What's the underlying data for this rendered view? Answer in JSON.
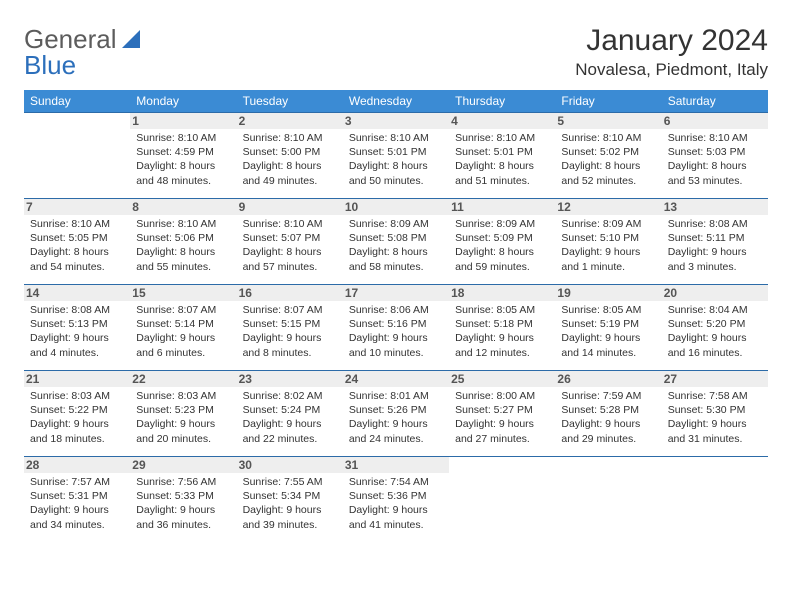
{
  "logo": {
    "part1": "General",
    "part2": "Blue"
  },
  "title": "January 2024",
  "location": "Novalesa, Piedmont, Italy",
  "colors": {
    "header_bg": "#3b8bd4",
    "header_fg": "#ffffff",
    "row_border": "#2c6ba8",
    "daynum_bg": "#eeeeee",
    "logo_gray": "#5c5c5c",
    "logo_blue": "#2c6fbb"
  },
  "weekdays": [
    "Sunday",
    "Monday",
    "Tuesday",
    "Wednesday",
    "Thursday",
    "Friday",
    "Saturday"
  ],
  "weeks": [
    [
      {
        "day": "",
        "sunrise": "",
        "sunset": "",
        "daylight1": "",
        "daylight2": ""
      },
      {
        "day": "1",
        "sunrise": "Sunrise: 8:10 AM",
        "sunset": "Sunset: 4:59 PM",
        "daylight1": "Daylight: 8 hours",
        "daylight2": "and 48 minutes."
      },
      {
        "day": "2",
        "sunrise": "Sunrise: 8:10 AM",
        "sunset": "Sunset: 5:00 PM",
        "daylight1": "Daylight: 8 hours",
        "daylight2": "and 49 minutes."
      },
      {
        "day": "3",
        "sunrise": "Sunrise: 8:10 AM",
        "sunset": "Sunset: 5:01 PM",
        "daylight1": "Daylight: 8 hours",
        "daylight2": "and 50 minutes."
      },
      {
        "day": "4",
        "sunrise": "Sunrise: 8:10 AM",
        "sunset": "Sunset: 5:01 PM",
        "daylight1": "Daylight: 8 hours",
        "daylight2": "and 51 minutes."
      },
      {
        "day": "5",
        "sunrise": "Sunrise: 8:10 AM",
        "sunset": "Sunset: 5:02 PM",
        "daylight1": "Daylight: 8 hours",
        "daylight2": "and 52 minutes."
      },
      {
        "day": "6",
        "sunrise": "Sunrise: 8:10 AM",
        "sunset": "Sunset: 5:03 PM",
        "daylight1": "Daylight: 8 hours",
        "daylight2": "and 53 minutes."
      }
    ],
    [
      {
        "day": "7",
        "sunrise": "Sunrise: 8:10 AM",
        "sunset": "Sunset: 5:05 PM",
        "daylight1": "Daylight: 8 hours",
        "daylight2": "and 54 minutes."
      },
      {
        "day": "8",
        "sunrise": "Sunrise: 8:10 AM",
        "sunset": "Sunset: 5:06 PM",
        "daylight1": "Daylight: 8 hours",
        "daylight2": "and 55 minutes."
      },
      {
        "day": "9",
        "sunrise": "Sunrise: 8:10 AM",
        "sunset": "Sunset: 5:07 PM",
        "daylight1": "Daylight: 8 hours",
        "daylight2": "and 57 minutes."
      },
      {
        "day": "10",
        "sunrise": "Sunrise: 8:09 AM",
        "sunset": "Sunset: 5:08 PM",
        "daylight1": "Daylight: 8 hours",
        "daylight2": "and 58 minutes."
      },
      {
        "day": "11",
        "sunrise": "Sunrise: 8:09 AM",
        "sunset": "Sunset: 5:09 PM",
        "daylight1": "Daylight: 8 hours",
        "daylight2": "and 59 minutes."
      },
      {
        "day": "12",
        "sunrise": "Sunrise: 8:09 AM",
        "sunset": "Sunset: 5:10 PM",
        "daylight1": "Daylight: 9 hours",
        "daylight2": "and 1 minute."
      },
      {
        "day": "13",
        "sunrise": "Sunrise: 8:08 AM",
        "sunset": "Sunset: 5:11 PM",
        "daylight1": "Daylight: 9 hours",
        "daylight2": "and 3 minutes."
      }
    ],
    [
      {
        "day": "14",
        "sunrise": "Sunrise: 8:08 AM",
        "sunset": "Sunset: 5:13 PM",
        "daylight1": "Daylight: 9 hours",
        "daylight2": "and 4 minutes."
      },
      {
        "day": "15",
        "sunrise": "Sunrise: 8:07 AM",
        "sunset": "Sunset: 5:14 PM",
        "daylight1": "Daylight: 9 hours",
        "daylight2": "and 6 minutes."
      },
      {
        "day": "16",
        "sunrise": "Sunrise: 8:07 AM",
        "sunset": "Sunset: 5:15 PM",
        "daylight1": "Daylight: 9 hours",
        "daylight2": "and 8 minutes."
      },
      {
        "day": "17",
        "sunrise": "Sunrise: 8:06 AM",
        "sunset": "Sunset: 5:16 PM",
        "daylight1": "Daylight: 9 hours",
        "daylight2": "and 10 minutes."
      },
      {
        "day": "18",
        "sunrise": "Sunrise: 8:05 AM",
        "sunset": "Sunset: 5:18 PM",
        "daylight1": "Daylight: 9 hours",
        "daylight2": "and 12 minutes."
      },
      {
        "day": "19",
        "sunrise": "Sunrise: 8:05 AM",
        "sunset": "Sunset: 5:19 PM",
        "daylight1": "Daylight: 9 hours",
        "daylight2": "and 14 minutes."
      },
      {
        "day": "20",
        "sunrise": "Sunrise: 8:04 AM",
        "sunset": "Sunset: 5:20 PM",
        "daylight1": "Daylight: 9 hours",
        "daylight2": "and 16 minutes."
      }
    ],
    [
      {
        "day": "21",
        "sunrise": "Sunrise: 8:03 AM",
        "sunset": "Sunset: 5:22 PM",
        "daylight1": "Daylight: 9 hours",
        "daylight2": "and 18 minutes."
      },
      {
        "day": "22",
        "sunrise": "Sunrise: 8:03 AM",
        "sunset": "Sunset: 5:23 PM",
        "daylight1": "Daylight: 9 hours",
        "daylight2": "and 20 minutes."
      },
      {
        "day": "23",
        "sunrise": "Sunrise: 8:02 AM",
        "sunset": "Sunset: 5:24 PM",
        "daylight1": "Daylight: 9 hours",
        "daylight2": "and 22 minutes."
      },
      {
        "day": "24",
        "sunrise": "Sunrise: 8:01 AM",
        "sunset": "Sunset: 5:26 PM",
        "daylight1": "Daylight: 9 hours",
        "daylight2": "and 24 minutes."
      },
      {
        "day": "25",
        "sunrise": "Sunrise: 8:00 AM",
        "sunset": "Sunset: 5:27 PM",
        "daylight1": "Daylight: 9 hours",
        "daylight2": "and 27 minutes."
      },
      {
        "day": "26",
        "sunrise": "Sunrise: 7:59 AM",
        "sunset": "Sunset: 5:28 PM",
        "daylight1": "Daylight: 9 hours",
        "daylight2": "and 29 minutes."
      },
      {
        "day": "27",
        "sunrise": "Sunrise: 7:58 AM",
        "sunset": "Sunset: 5:30 PM",
        "daylight1": "Daylight: 9 hours",
        "daylight2": "and 31 minutes."
      }
    ],
    [
      {
        "day": "28",
        "sunrise": "Sunrise: 7:57 AM",
        "sunset": "Sunset: 5:31 PM",
        "daylight1": "Daylight: 9 hours",
        "daylight2": "and 34 minutes."
      },
      {
        "day": "29",
        "sunrise": "Sunrise: 7:56 AM",
        "sunset": "Sunset: 5:33 PM",
        "daylight1": "Daylight: 9 hours",
        "daylight2": "and 36 minutes."
      },
      {
        "day": "30",
        "sunrise": "Sunrise: 7:55 AM",
        "sunset": "Sunset: 5:34 PM",
        "daylight1": "Daylight: 9 hours",
        "daylight2": "and 39 minutes."
      },
      {
        "day": "31",
        "sunrise": "Sunrise: 7:54 AM",
        "sunset": "Sunset: 5:36 PM",
        "daylight1": "Daylight: 9 hours",
        "daylight2": "and 41 minutes."
      },
      {
        "day": "",
        "sunrise": "",
        "sunset": "",
        "daylight1": "",
        "daylight2": ""
      },
      {
        "day": "",
        "sunrise": "",
        "sunset": "",
        "daylight1": "",
        "daylight2": ""
      },
      {
        "day": "",
        "sunrise": "",
        "sunset": "",
        "daylight1": "",
        "daylight2": ""
      }
    ]
  ]
}
